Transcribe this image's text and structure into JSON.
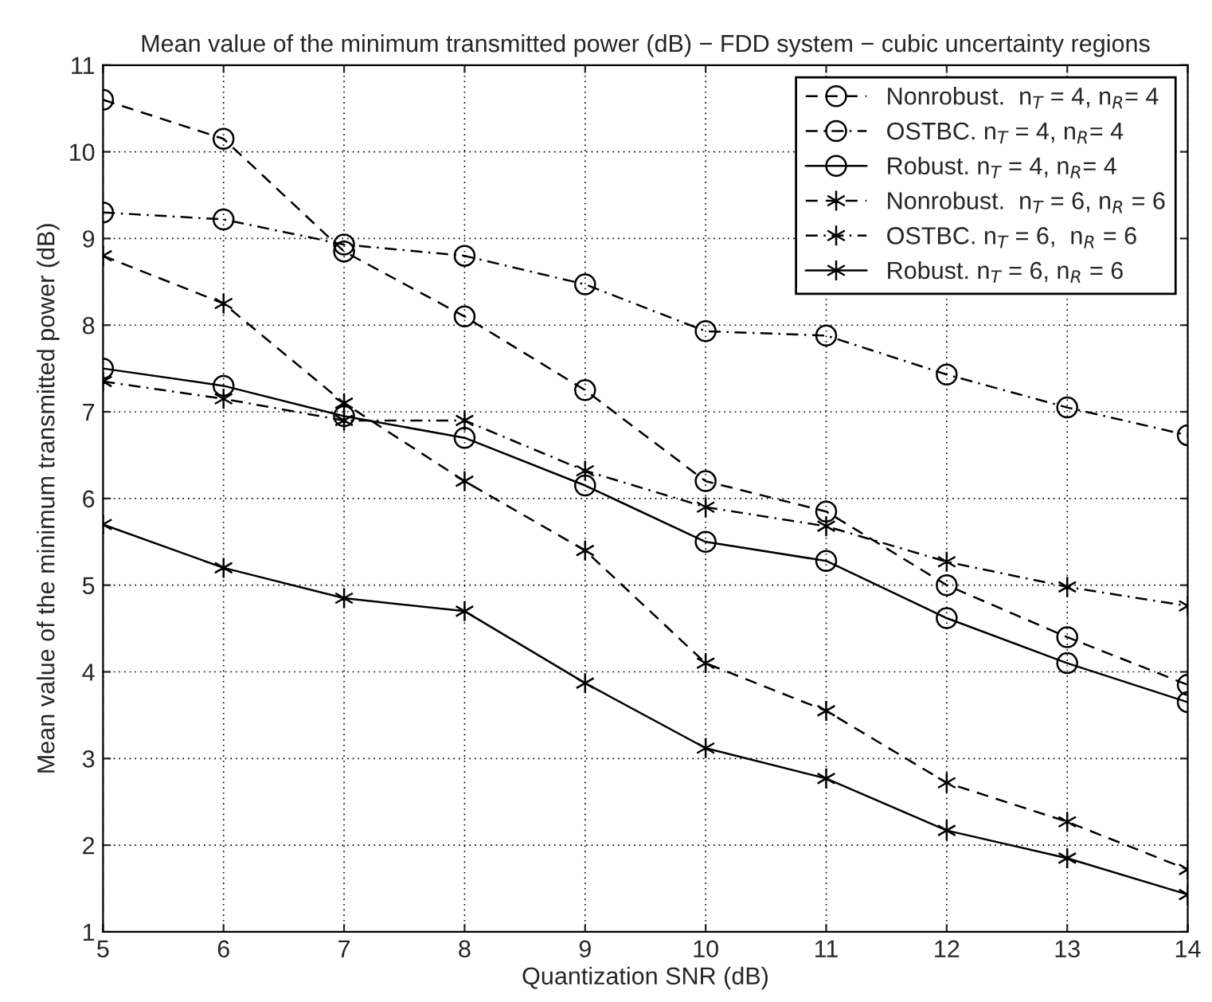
{
  "chart_data": {
    "type": "line",
    "title": "Mean value of the minimum transmitted power (dB) − FDD system − cubic uncertainty regions",
    "xlabel": "Quantization SNR (dB)",
    "ylabel": "Mean value of the minimum transmitted power (dB)",
    "x": [
      5,
      6,
      7,
      8,
      9,
      10,
      11,
      12,
      13,
      14
    ],
    "series": [
      {
        "name": "Nonrobust.  n$_{T}$ = 4, n$_{R}$= 4",
        "color": "#000000",
        "marker": "circle",
        "line_style": "dashed",
        "values": [
          10.6,
          10.15,
          8.85,
          8.1,
          7.25,
          6.2,
          5.85,
          5.0,
          4.4,
          3.85
        ]
      },
      {
        "name": "OSTBC. n$_{T}$ = 4, n$_{R}$= 4",
        "color": "#000000",
        "marker": "circle",
        "line_style": "dashdot",
        "values": [
          9.3,
          9.22,
          8.93,
          8.8,
          8.47,
          7.93,
          7.88,
          7.43,
          7.05,
          6.73
        ]
      },
      {
        "name": "Robust. n$_{T}$ = 4, n$_{R}$= 4",
        "color": "#000000",
        "marker": "circle",
        "line_style": "solid",
        "values": [
          7.5,
          7.3,
          6.95,
          6.7,
          6.15,
          5.5,
          5.28,
          4.62,
          4.1,
          3.65
        ]
      },
      {
        "name": "Nonrobust.  n$_{T}$ = 6, n$_{R}$ = 6",
        "color": "#000000",
        "marker": "cross",
        "line_style": "dashed",
        "values": [
          8.8,
          8.25,
          7.1,
          6.2,
          5.4,
          4.1,
          3.55,
          2.72,
          2.27,
          1.72
        ]
      },
      {
        "name": "OSTBC. n$_{T}$ = 6,  n$_{R}$ = 6",
        "color": "#000000",
        "marker": "cross",
        "line_style": "dashdot",
        "values": [
          7.35,
          7.15,
          6.9,
          6.9,
          6.32,
          5.9,
          5.68,
          5.27,
          4.98,
          4.76
        ]
      },
      {
        "name": "Robust. n$_{T}$ = 6, n$_{R}$ = 6",
        "color": "#000000",
        "marker": "cross",
        "line_style": "solid",
        "values": [
          5.7,
          5.2,
          4.85,
          4.7,
          3.87,
          3.12,
          2.77,
          2.17,
          1.85,
          1.43
        ]
      }
    ],
    "xlim": [
      5,
      14
    ],
    "xticks": [
      5,
      6,
      7,
      8,
      9,
      10,
      11,
      12,
      13,
      14
    ],
    "ylim": [
      1,
      11
    ],
    "yticks": [
      1,
      2,
      3,
      4,
      5,
      6,
      7,
      8,
      9,
      10,
      11
    ],
    "grid": true,
    "legend": "top right"
  }
}
